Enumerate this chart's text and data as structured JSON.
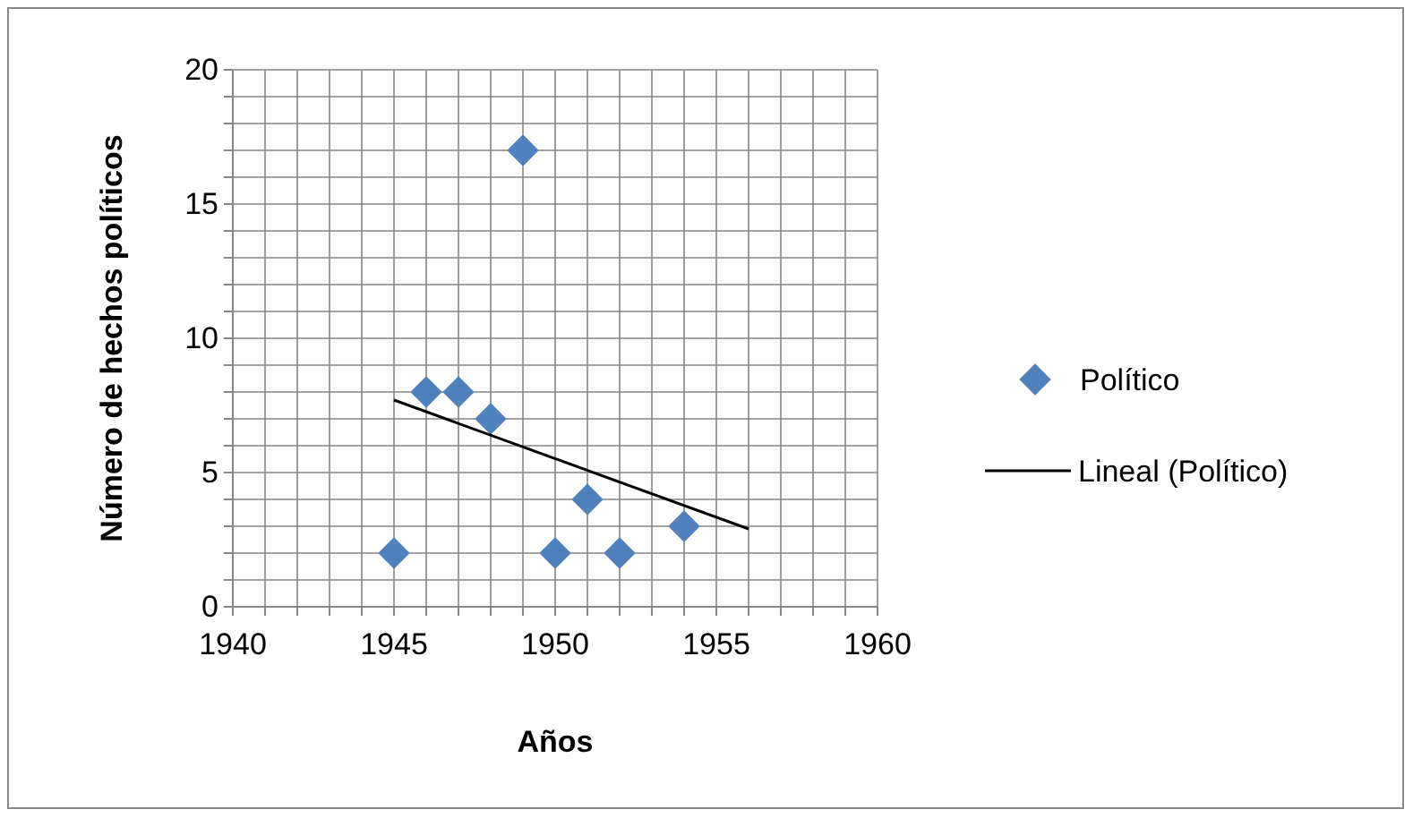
{
  "chart_data": {
    "type": "scatter",
    "xlabel": "Años",
    "ylabel": "Número de hechos políticos",
    "xlim": [
      1940,
      1960
    ],
    "ylim": [
      0,
      20
    ],
    "xticks": [
      1940,
      {
        "value": 1941,
        "label": null
      },
      {
        "value": 1942,
        "label": null
      },
      {
        "value": 1943,
        "label": null
      },
      {
        "value": 1944,
        "label": null
      },
      1945,
      {
        "value": 1946,
        "label": null
      },
      {
        "value": 1947,
        "label": null
      },
      {
        "value": 1948,
        "label": null
      },
      {
        "value": 1949,
        "label": null
      },
      1950,
      {
        "value": 1951,
        "label": null
      },
      {
        "value": 1952,
        "label": null
      },
      {
        "value": 1953,
        "label": null
      },
      {
        "value": 1954,
        "label": null
      },
      1955,
      {
        "value": 1956,
        "label": null
      },
      {
        "value": 1957,
        "label": null
      },
      {
        "value": 1958,
        "label": null
      },
      {
        "value": 1959,
        "label": null
      },
      1960
    ],
    "yticks": [
      0,
      {
        "value": 1,
        "label": null
      },
      {
        "value": 2,
        "label": null
      },
      {
        "value": 3,
        "label": null
      },
      {
        "value": 4,
        "label": null
      },
      5,
      {
        "value": 6,
        "label": null
      },
      {
        "value": 7,
        "label": null
      },
      {
        "value": 8,
        "label": null
      },
      {
        "value": 9,
        "label": null
      },
      10,
      {
        "value": 11,
        "label": null
      },
      {
        "value": 12,
        "label": null
      },
      {
        "value": 13,
        "label": null
      },
      {
        "value": 14,
        "label": null
      },
      15,
      {
        "value": 16,
        "label": null
      },
      {
        "value": 17,
        "label": null
      },
      {
        "value": 18,
        "label": null
      },
      {
        "value": 19,
        "label": null
      },
      20
    ],
    "grid": true,
    "legend": "right",
    "series": [
      {
        "name": "Político",
        "marker": "diamond",
        "color": "#4f81bd",
        "x": [
          1945,
          1946,
          1947,
          1948,
          1949,
          1950,
          1951,
          1952,
          1954
        ],
        "values": [
          2,
          8,
          8,
          7,
          17,
          2,
          4,
          2,
          3
        ]
      },
      {
        "name": "Lineal (Político)",
        "type": "line",
        "marker": "none",
        "line_style": "solid",
        "color": "#000000",
        "x": [
          1945,
          1956
        ],
        "values": [
          7.7,
          2.9
        ]
      }
    ]
  }
}
